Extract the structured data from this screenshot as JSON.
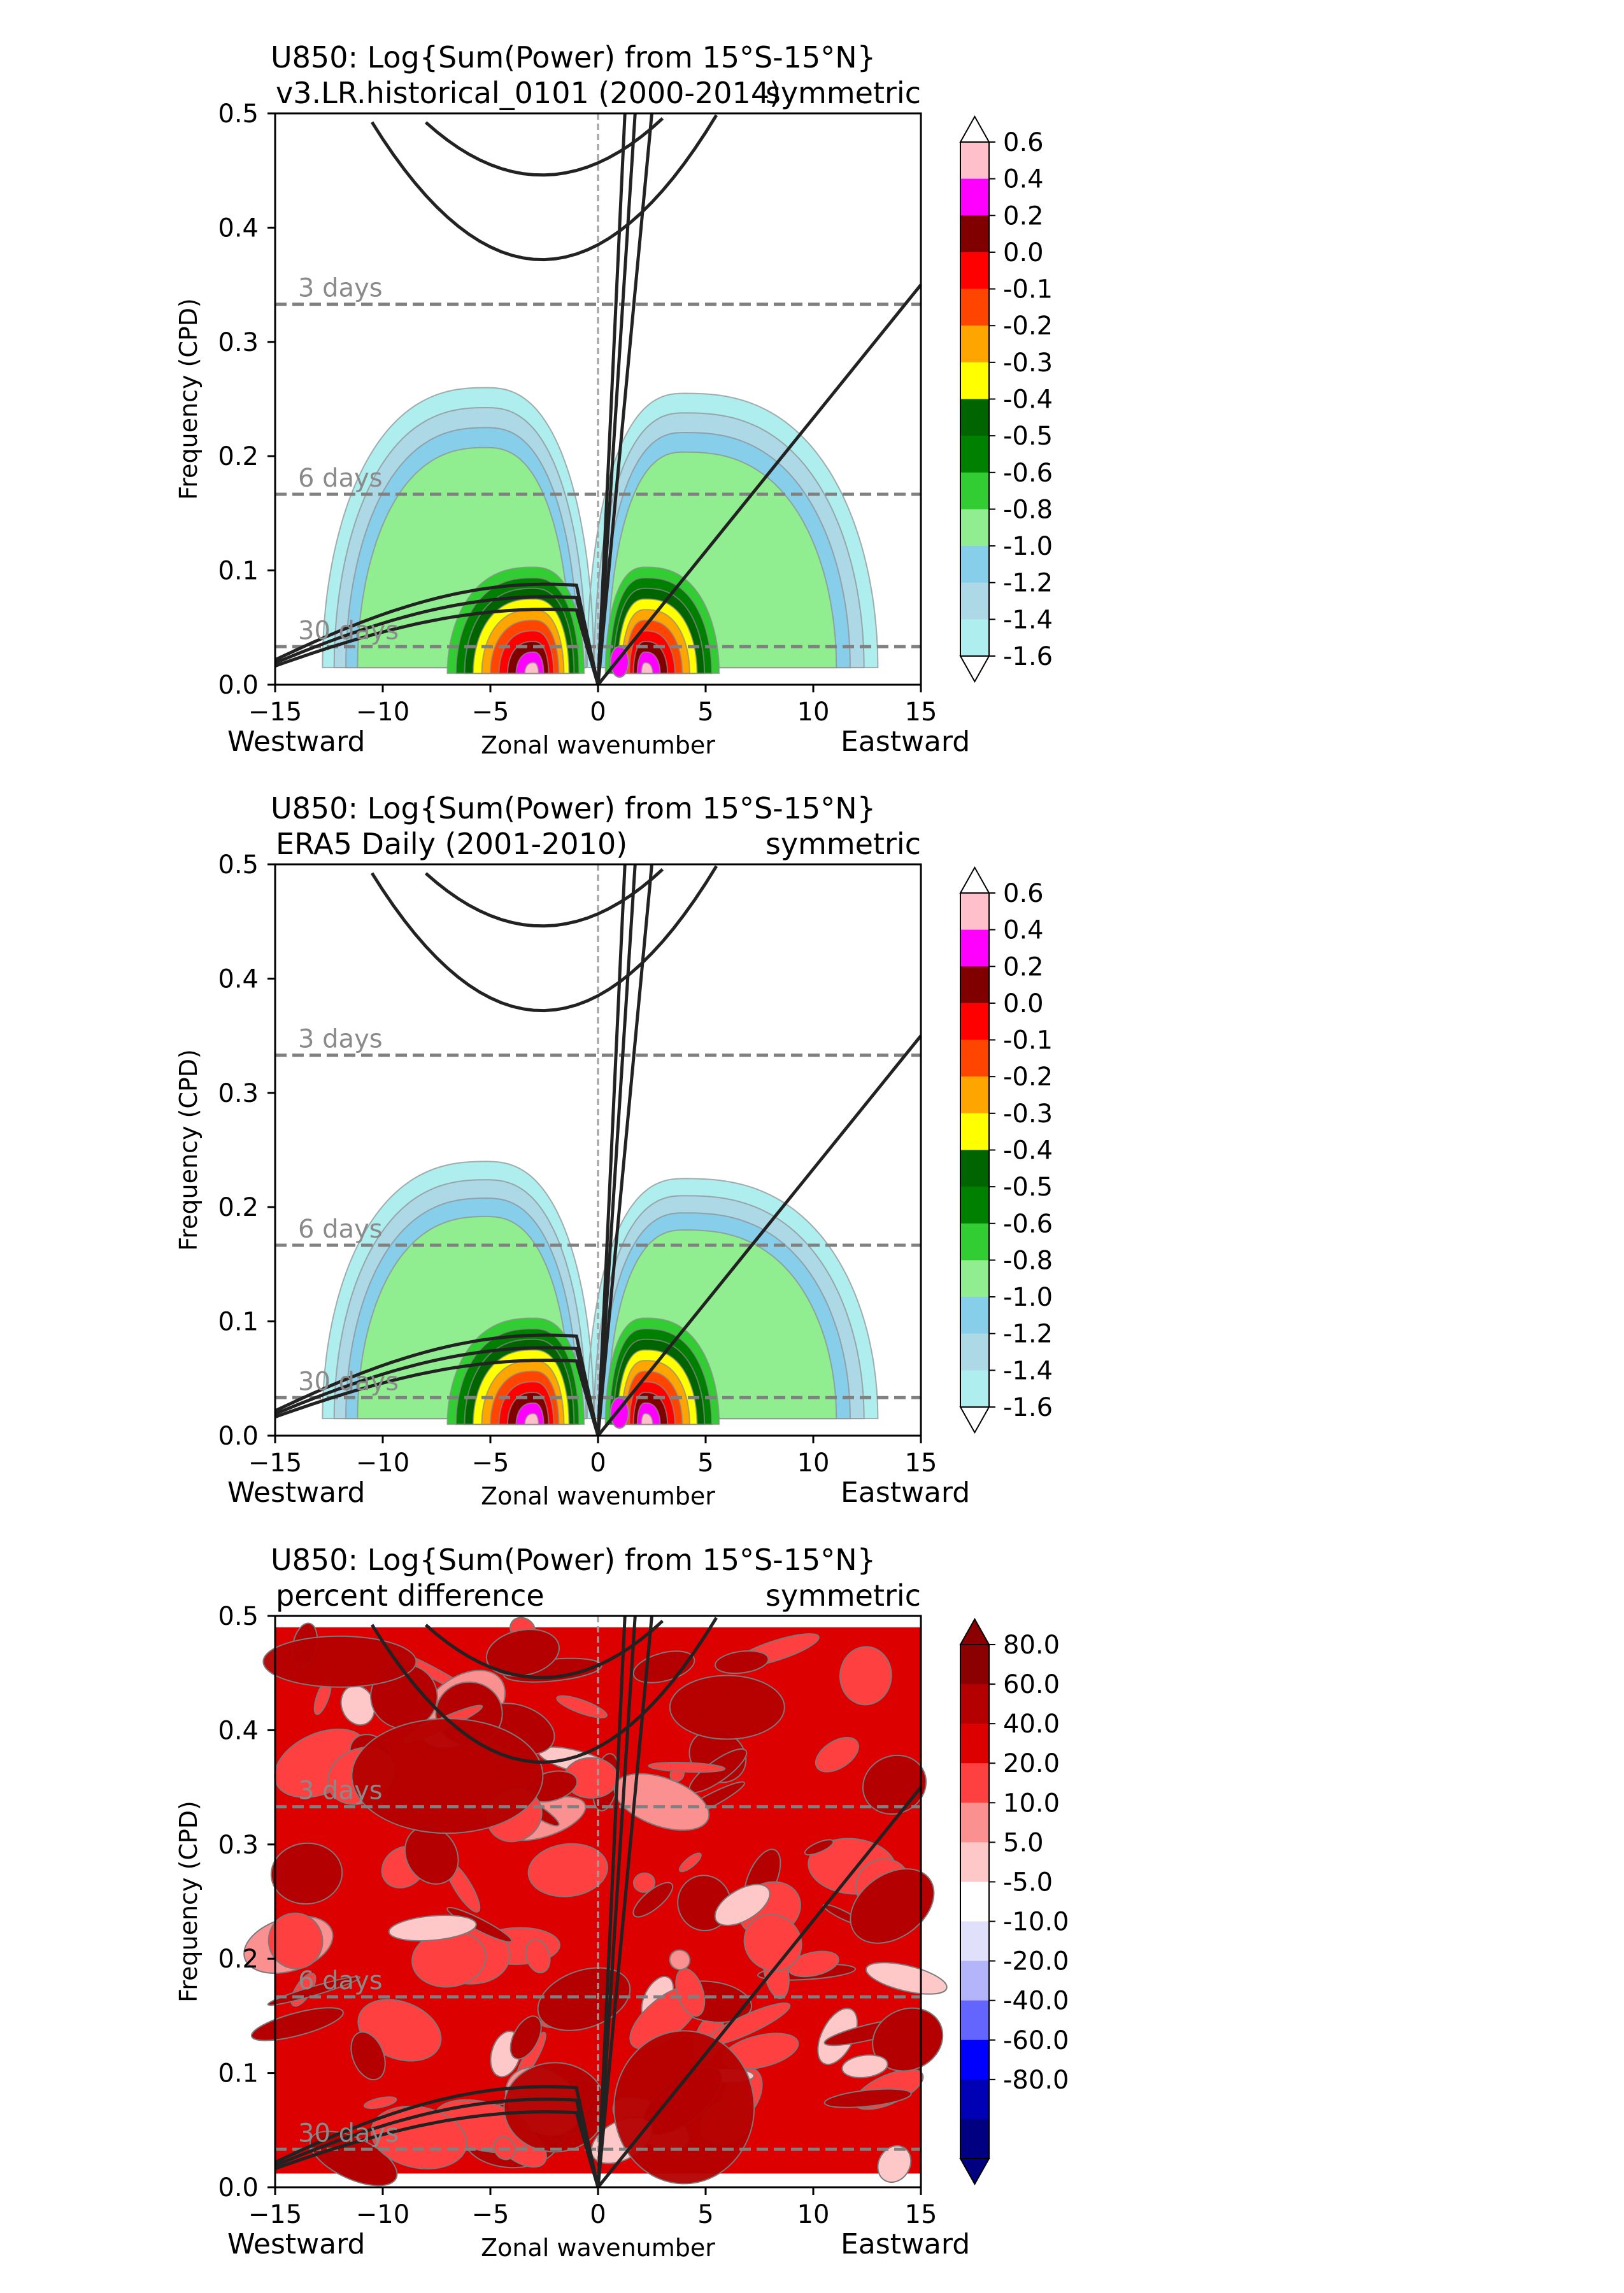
{
  "chart_data": [
    {
      "type": "contour",
      "title_line1": "U850: Log{Sum(Power) from 15°S-15°N}",
      "subtitle_left": "v3.LR.historical_0101 (2000-2014)",
      "subtitle_right": "symmetric",
      "xlabel": "Zonal wavenumber",
      "ylabel": "Frequency (CPD)",
      "west_label": "Westward",
      "east_label": "Eastward",
      "xlim": [
        -15,
        15
      ],
      "ylim": [
        0,
        0.5
      ],
      "xticks": [
        "−15",
        "−10",
        "−5",
        "0",
        "5",
        "10",
        "15"
      ],
      "yticks": [
        "0.0",
        "0.1",
        "0.2",
        "0.3",
        "0.4",
        "0.5"
      ],
      "period_lines": [
        {
          "label": "3 days",
          "freq": 0.333
        },
        {
          "label": "6 days",
          "freq": 0.1667
        },
        {
          "label": "30 days",
          "freq": 0.0333
        }
      ],
      "colorbar_labels": [
        "0.6",
        "0.4",
        "0.2",
        "0.0",
        "-0.1",
        "-0.2",
        "-0.3",
        "-0.4",
        "-0.5",
        "-0.6",
        "-0.8",
        "-1.0",
        "-1.2",
        "-1.4",
        "-1.6"
      ],
      "colorbar_colors": [
        "#ffc0cb",
        "#ff00ff",
        "#800000",
        "#ff0000",
        "#ff4500",
        "#ffa500",
        "#ffff00",
        "#006400",
        "#008000",
        "#32cd32",
        "#90ee90",
        "#87ceeb",
        "#add8e6",
        "#afeeee"
      ],
      "max_power_at": {
        "wavenumber": 1,
        "freq": 0.02
      }
    },
    {
      "type": "contour",
      "title_line1": "U850: Log{Sum(Power) from 15°S-15°N}",
      "subtitle_left": "ERA5 Daily (2001-2010)",
      "subtitle_right": "symmetric",
      "xlabel": "Zonal wavenumber",
      "ylabel": "Frequency (CPD)",
      "west_label": "Westward",
      "east_label": "Eastward",
      "xlim": [
        -15,
        15
      ],
      "ylim": [
        0,
        0.5
      ],
      "xticks": [
        "−15",
        "−10",
        "−5",
        "0",
        "5",
        "10",
        "15"
      ],
      "yticks": [
        "0.0",
        "0.1",
        "0.2",
        "0.3",
        "0.4",
        "0.5"
      ],
      "period_lines": [
        {
          "label": "3 days",
          "freq": 0.333
        },
        {
          "label": "6 days",
          "freq": 0.1667
        },
        {
          "label": "30 days",
          "freq": 0.0333
        }
      ],
      "colorbar_labels": [
        "0.6",
        "0.4",
        "0.2",
        "0.0",
        "-0.1",
        "-0.2",
        "-0.3",
        "-0.4",
        "-0.5",
        "-0.6",
        "-0.8",
        "-1.0",
        "-1.2",
        "-1.4",
        "-1.6"
      ],
      "colorbar_colors": [
        "#ffc0cb",
        "#ff00ff",
        "#800000",
        "#ff0000",
        "#ff4500",
        "#ffa500",
        "#ffff00",
        "#006400",
        "#008000",
        "#32cd32",
        "#90ee90",
        "#87ceeb",
        "#add8e6",
        "#afeeee"
      ],
      "max_power_at": {
        "wavenumber": 1,
        "freq": 0.02
      }
    },
    {
      "type": "contour",
      "title_line1": "U850: Log{Sum(Power) from 15°S-15°N}",
      "subtitle_left": "percent difference",
      "subtitle_right": "symmetric",
      "xlabel": "Zonal wavenumber",
      "ylabel": "Frequency (CPD)",
      "west_label": "Westward",
      "east_label": "Eastward",
      "xlim": [
        -15,
        15
      ],
      "ylim": [
        0,
        0.5
      ],
      "xticks": [
        "−15",
        "−10",
        "−5",
        "0",
        "5",
        "10",
        "15"
      ],
      "yticks": [
        "0.0",
        "0.1",
        "0.2",
        "0.3",
        "0.4",
        "0.5"
      ],
      "period_lines": [
        {
          "label": "3 days",
          "freq": 0.333
        },
        {
          "label": "6 days",
          "freq": 0.1667
        },
        {
          "label": "30 days",
          "freq": 0.0333
        }
      ],
      "colorbar_labels": [
        "80.0",
        "60.0",
        "40.0",
        "20.0",
        "10.0",
        "5.0",
        "-5.0",
        "-10.0",
        "-20.0",
        "-40.0",
        "-60.0",
        "-80.0"
      ],
      "colorbar_colors": [
        "#8b0000",
        "#b40000",
        "#dc0000",
        "#ff4040",
        "#fa9090",
        "#ffc8c8",
        "#ffffff",
        "#e0e0fa",
        "#b4b4fa",
        "#6464ff",
        "#0000ff",
        "#0000b4",
        "#000080"
      ],
      "background_percent": 40
    }
  ]
}
